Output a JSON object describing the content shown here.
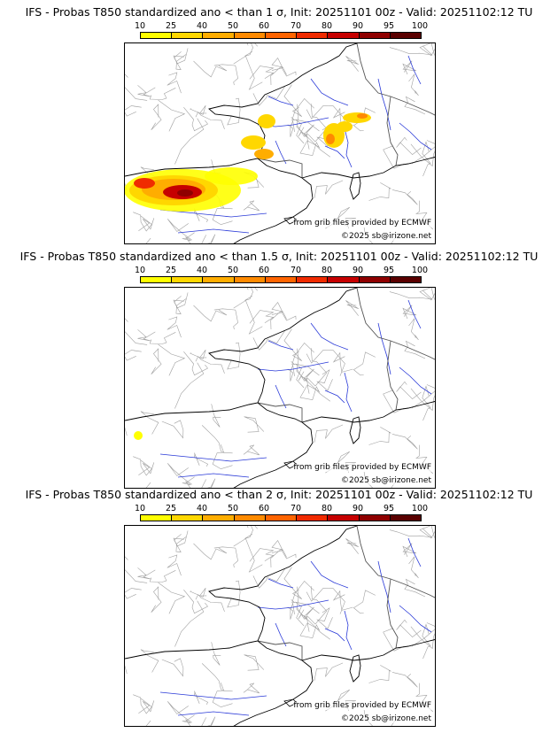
{
  "panels": [
    {
      "title": "IFS - Probas T850  standardized ano < than 1 σ, Init: 20251101 00z - Valid: 20251102:12 TU",
      "colorbar_ticks": [
        "10",
        "25",
        "40",
        "50",
        "60",
        "70",
        "80",
        "90",
        "95",
        "100"
      ],
      "credit_source": "from grib files provided by ECMWF",
      "credit_copyright": "©2025 sb@irizone.net",
      "probability_zones": [
        {
          "region": "northwest Spain / Cantabrian area",
          "max_probability_pct": 90
        },
        {
          "region": "Loire / central France",
          "max_probability_pct": 40
        },
        {
          "region": "Burgundy / Jura",
          "max_probability_pct": 50
        },
        {
          "region": "Alsace / Switzerland border",
          "max_probability_pct": 40
        }
      ]
    },
    {
      "title": "IFS - Probas T850  standardized ano < than 1.5 σ, Init: 20251101 00z - Valid: 20251102:12 TU",
      "colorbar_ticks": [
        "10",
        "25",
        "40",
        "50",
        "60",
        "70",
        "80",
        "90",
        "95",
        "100"
      ],
      "credit_source": "from grib files provided by ECMWF",
      "credit_copyright": "©2025 sb@irizone.net",
      "probability_zones": [
        {
          "region": "northwest Spain",
          "max_probability_pct": 25
        }
      ]
    },
    {
      "title": "IFS - Probas T850  standardized ano < than 2 σ, Init: 20251101 00z - Valid: 20251102:12 TU",
      "colorbar_ticks": [
        "10",
        "25",
        "40",
        "50",
        "60",
        "70",
        "80",
        "90",
        "95",
        "100"
      ],
      "credit_source": "from grib files provided by ECMWF",
      "credit_copyright": "©2025 sb@irizone.net",
      "probability_zones": []
    }
  ],
  "colorbar_colors": [
    "#ffff00",
    "#ffd700",
    "#ffad00",
    "#ff8a00",
    "#ff6400",
    "#f02b00",
    "#c60000",
    "#8f0000",
    "#5a0000"
  ]
}
